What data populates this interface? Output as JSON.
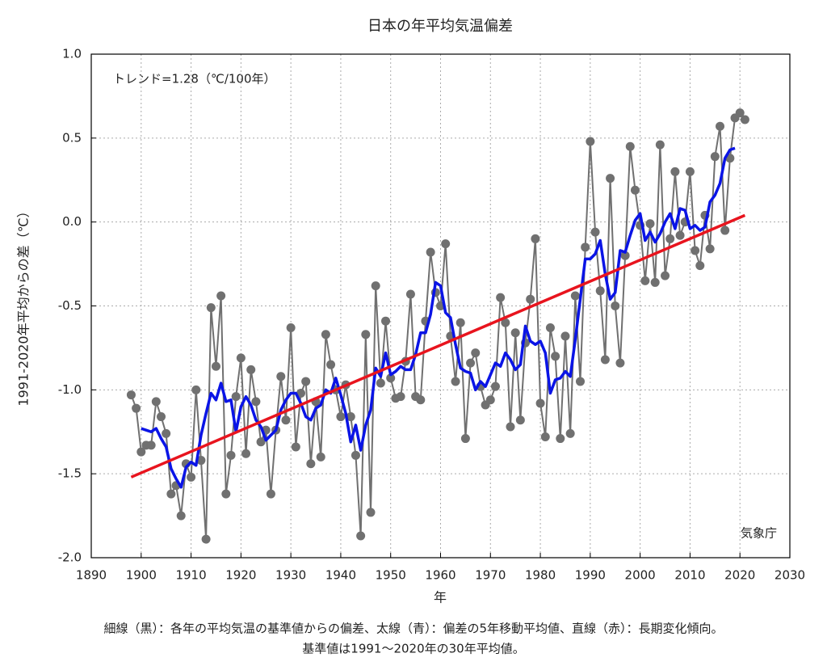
{
  "chart_data": {
    "type": "line",
    "title": "日本の年平均気温偏差",
    "xlabel": "年",
    "ylabel": "1991-2020年平均からの差（℃）",
    "annotations": [
      "トレンド=1.28（℃/100年）",
      "気象庁"
    ],
    "x": [
      1898,
      1899,
      1900,
      1901,
      1902,
      1903,
      1904,
      1905,
      1906,
      1907,
      1908,
      1909,
      1910,
      1911,
      1912,
      1913,
      1914,
      1915,
      1916,
      1917,
      1918,
      1919,
      1920,
      1921,
      1922,
      1923,
      1924,
      1925,
      1926,
      1927,
      1928,
      1929,
      1930,
      1931,
      1932,
      1933,
      1934,
      1935,
      1936,
      1937,
      1938,
      1939,
      1940,
      1941,
      1942,
      1943,
      1944,
      1945,
      1946,
      1947,
      1948,
      1949,
      1950,
      1951,
      1952,
      1953,
      1954,
      1955,
      1956,
      1957,
      1958,
      1959,
      1960,
      1961,
      1962,
      1963,
      1964,
      1965,
      1966,
      1967,
      1968,
      1969,
      1970,
      1971,
      1972,
      1973,
      1974,
      1975,
      1976,
      1977,
      1978,
      1979,
      1980,
      1981,
      1982,
      1983,
      1984,
      1985,
      1986,
      1987,
      1988,
      1989,
      1990,
      1991,
      1992,
      1993,
      1994,
      1995,
      1996,
      1997,
      1998,
      1999,
      2000,
      2001,
      2002,
      2003,
      2004,
      2005,
      2006,
      2007,
      2008,
      2009,
      2010,
      2011,
      2012,
      2013,
      2014,
      2015,
      2016,
      2017,
      2018,
      2019,
      2020,
      2021
    ],
    "series": [
      {
        "color": "#707070",
        "marker": "circle",
        "width": 2,
        "values": [
          -1.03,
          -1.11,
          -1.37,
          -1.33,
          -1.33,
          -1.07,
          -1.16,
          -1.26,
          -1.62,
          -1.57,
          -1.75,
          -1.44,
          -1.52,
          -1.0,
          -1.42,
          -1.89,
          -0.51,
          -0.86,
          -0.44,
          -1.62,
          -1.39,
          -1.04,
          -0.81,
          -1.38,
          -0.88,
          -1.07,
          -1.31,
          -1.24,
          -1.62,
          -1.24,
          -0.92,
          -1.18,
          -0.63,
          -1.34,
          -1.02,
          -0.95,
          -1.44,
          -1.07,
          -1.4,
          -0.67,
          -0.85,
          -1.0,
          -1.16,
          -0.97,
          -1.16,
          -1.39,
          -1.87,
          -0.67,
          -1.73,
          -0.38,
          -0.96,
          -0.59,
          -0.93,
          -1.05,
          -1.04,
          -0.83,
          -0.43,
          -1.04,
          -1.06,
          -0.59,
          -0.18,
          -0.42,
          -0.5,
          -0.13,
          -0.68,
          -0.95,
          -0.6,
          -1.29,
          -0.84,
          -0.78,
          -0.98,
          -1.09,
          -1.06,
          -0.98,
          -0.45,
          -0.6,
          -1.22,
          -0.66,
          -1.18,
          -0.72,
          -0.46,
          -0.1,
          -1.08,
          -1.28,
          -0.63,
          -0.8,
          -1.29,
          -0.68,
          -1.26,
          -0.44,
          -0.95,
          -0.15,
          0.48,
          -0.06,
          -0.41,
          -0.82,
          0.26,
          -0.5,
          -0.84,
          -0.2,
          0.45,
          0.19,
          -0.02,
          -0.35,
          -0.01,
          -0.36,
          0.46,
          -0.32,
          -0.1,
          0.3,
          -0.08,
          0.0,
          0.3,
          -0.17,
          -0.26,
          0.04,
          -0.16,
          0.39,
          0.57,
          -0.05,
          0.38,
          0.62,
          0.65,
          0.61
        ]
      },
      {
        "color": "#0a14e6",
        "marker": "none",
        "width": 3.5,
        "values": [
          null,
          null,
          -1.23,
          -1.24,
          -1.25,
          -1.23,
          -1.29,
          -1.34,
          -1.47,
          -1.53,
          -1.58,
          -1.46,
          -1.43,
          -1.45,
          -1.27,
          -1.14,
          -1.02,
          -1.06,
          -0.96,
          -1.07,
          -1.06,
          -1.25,
          -1.1,
          -1.04,
          -1.09,
          -1.18,
          -1.22,
          -1.3,
          -1.27,
          -1.24,
          -1.12,
          -1.06,
          -1.02,
          -1.02,
          -1.08,
          -1.16,
          -1.18,
          -1.11,
          -1.09,
          -1.0,
          -1.02,
          -0.93,
          -1.03,
          -1.14,
          -1.31,
          -1.21,
          -1.36,
          -1.21,
          -1.12,
          -0.87,
          -0.92,
          -0.78,
          -0.91,
          -0.89,
          -0.86,
          -0.88,
          -0.88,
          -0.79,
          -0.66,
          -0.66,
          -0.55,
          -0.36,
          -0.38,
          -0.54,
          -0.57,
          -0.73,
          -0.87,
          -0.89,
          -0.9,
          -1.0,
          -0.95,
          -0.98,
          -0.91,
          -0.84,
          -0.86,
          -0.78,
          -0.82,
          -0.88,
          -0.85,
          -0.62,
          -0.71,
          -0.73,
          -0.71,
          -0.78,
          -1.02,
          -0.94,
          -0.93,
          -0.89,
          -0.92,
          -0.7,
          -0.46,
          -0.22,
          -0.22,
          -0.19,
          -0.11,
          -0.31,
          -0.46,
          -0.42,
          -0.17,
          -0.18,
          -0.08,
          0.01,
          0.05,
          -0.11,
          -0.06,
          -0.12,
          -0.07,
          0.0,
          0.05,
          -0.04,
          0.08,
          0.07,
          -0.04,
          -0.02,
          -0.05,
          -0.03,
          0.12,
          0.16,
          0.23,
          0.38,
          0.43,
          0.44,
          null,
          null
        ]
      }
    ],
    "trend": {
      "x": [
        1898,
        2021
      ],
      "values": [
        -1.52,
        0.04
      ],
      "color": "#e8141e"
    },
    "xlim": [
      1890,
      2030
    ],
    "ylim": [
      -2,
      1
    ],
    "xticks": [
      1890,
      1900,
      1910,
      1920,
      1930,
      1940,
      1950,
      1960,
      1970,
      1980,
      1990,
      2000,
      2010,
      2020,
      2030
    ],
    "yticks": [
      {
        "value": 1,
        "label": "1.0"
      },
      0.5,
      {
        "value": 0,
        "label": "0.0"
      },
      -0.5,
      {
        "value": -1,
        "label": "-1.0"
      },
      -1.5,
      {
        "value": -2,
        "label": "-2.0"
      }
    ],
    "grid": true
  },
  "caption": [
    "細線（黒）：各年の平均気温の基準値からの偏差、太線（青）：偏差の5年移動平均値、直線（赤）：長期変化傾向。",
    "基準値は1991〜2020年の30年平均値。"
  ]
}
